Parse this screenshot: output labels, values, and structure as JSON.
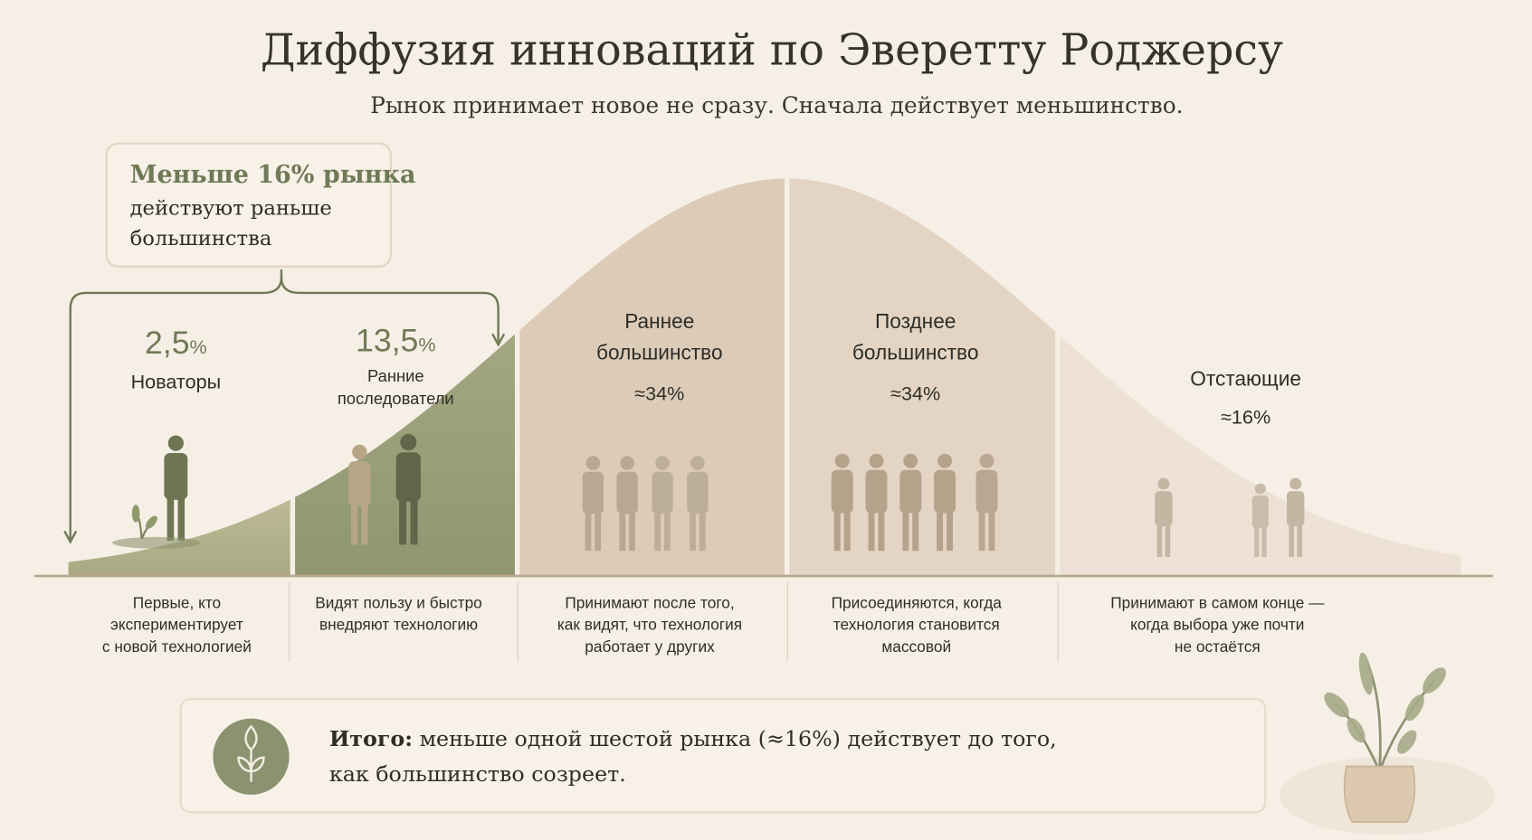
{
  "title": "Диффузия инноваций по Эверетту Роджерсу",
  "subtitle": "Рынок принимает новое не сразу. Сначала действует меньшинство.",
  "callout": {
    "highlight": "Меньше 16% рынка",
    "line2": "действуют раньше",
    "line3": "большинства"
  },
  "segments": [
    {
      "value": "2,5",
      "unit": "%",
      "label_lines": [
        "Новаторы"
      ],
      "description_lines": [
        "Первые, кто",
        "экспериментирует",
        "с новой технологией"
      ]
    },
    {
      "value": "13,5",
      "unit": "%",
      "label_lines": [
        "Ранние",
        "последователи"
      ],
      "description_lines": [
        "Видят пользу и быстро",
        "внедряют технологию"
      ]
    },
    {
      "value": "≈34%",
      "label_lines": [
        "Раннее",
        "большинство"
      ],
      "description_lines": [
        "Принимают после того,",
        "как видят, что технология",
        "работает у других"
      ]
    },
    {
      "value": "≈34%",
      "label_lines": [
        "Позднее",
        "большинство"
      ],
      "description_lines": [
        "Присоединяются, когда",
        "технология становится",
        "массовой"
      ]
    },
    {
      "value": "≈16%",
      "label_lines": [
        "Отстающие"
      ],
      "description_lines": [
        "Принимают в самом конце —",
        "когда выбора уже почти",
        "не остаётся"
      ]
    }
  ],
  "summary": {
    "icon": "sprout-icon",
    "bold": "Итого:",
    "line1": " меньше одной шестой рынка (≈16%) действует до того,",
    "line2": "как большинство созреет."
  },
  "colors": {
    "background": "#f6efe6",
    "accent_green": "#6f7a56",
    "innovators": "#b9b894",
    "early_adopters": "#9ea37e",
    "early_majority": "#dccbb7",
    "late_majority": "#e3d4c3",
    "laggards": "#ede2d5"
  }
}
